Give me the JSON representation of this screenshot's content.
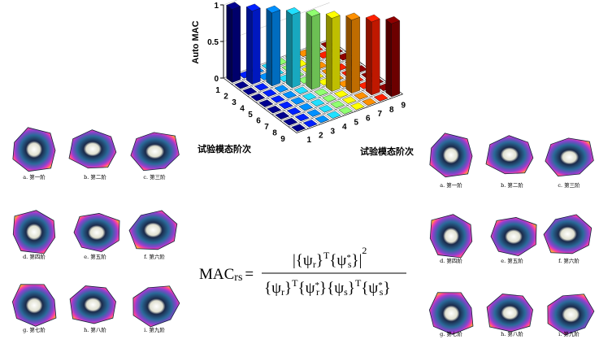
{
  "chart_data": {
    "type": "bar3d",
    "zlabel": "Auto MAC",
    "row_label": "试验模态阶次",
    "col_label": "试验模态阶次",
    "rows": [
      "1",
      "2",
      "3",
      "4",
      "5",
      "6",
      "7",
      "8",
      "9"
    ],
    "cols": [
      "1",
      "2",
      "3",
      "4",
      "5",
      "6",
      "7",
      "8",
      "9"
    ],
    "values": [
      [
        1,
        0,
        0,
        0,
        0,
        0,
        0,
        0,
        0
      ],
      [
        0,
        1,
        0,
        0,
        0,
        0,
        0,
        0,
        0
      ],
      [
        0,
        0,
        1,
        0,
        0,
        0,
        0,
        0,
        0
      ],
      [
        0,
        0,
        0,
        1,
        0,
        0,
        0,
        0,
        0
      ],
      [
        0,
        0,
        0,
        0,
        1,
        0,
        0,
        0,
        0
      ],
      [
        0,
        0,
        0,
        0,
        0,
        1,
        0,
        0,
        0
      ],
      [
        0,
        0,
        0,
        0,
        0,
        0,
        1,
        0,
        0
      ],
      [
        0,
        0,
        0,
        0,
        0,
        0,
        0,
        1,
        0
      ],
      [
        0,
        0,
        0,
        0,
        0,
        0,
        0,
        0,
        1
      ]
    ],
    "zlim": [
      0,
      1
    ],
    "zticks": [
      0,
      0.5,
      1
    ],
    "colors": [
      "#00008f",
      "#0020ff",
      "#0090ff",
      "#20e0ff",
      "#90ff70",
      "#ffff00",
      "#ff9000",
      "#ff2000",
      "#900000"
    ]
  },
  "left_panel": {
    "captions": [
      "a. 第一阶",
      "b. 第二阶",
      "c. 第三阶",
      "d. 第四阶",
      "e. 第五阶",
      "f. 第六阶",
      "g. 第七阶",
      "h. 第八阶",
      "i. 第九阶"
    ]
  },
  "right_panel": {
    "captions": [
      "a. 第一阶",
      "b. 第二阶",
      "c. 第三阶",
      "d. 第四阶",
      "e. 第五阶",
      "f. 第六阶",
      "g. 第七阶",
      "h. 第八阶",
      "i. 第九阶"
    ]
  },
  "formula": {
    "lhs": "MAC",
    "lhs_sub": "rs",
    "equals": "=",
    "numerator": [
      "|{ψ",
      "r",
      "}",
      "T",
      "{ψ",
      "*",
      "s",
      "}|",
      "2"
    ],
    "denominator": [
      "{ψ",
      "r",
      "}",
      "T",
      "{ψ",
      "*",
      "r",
      "}{ψ",
      "s",
      "}",
      "T",
      "{ψ",
      "*",
      "s",
      "}"
    ]
  }
}
